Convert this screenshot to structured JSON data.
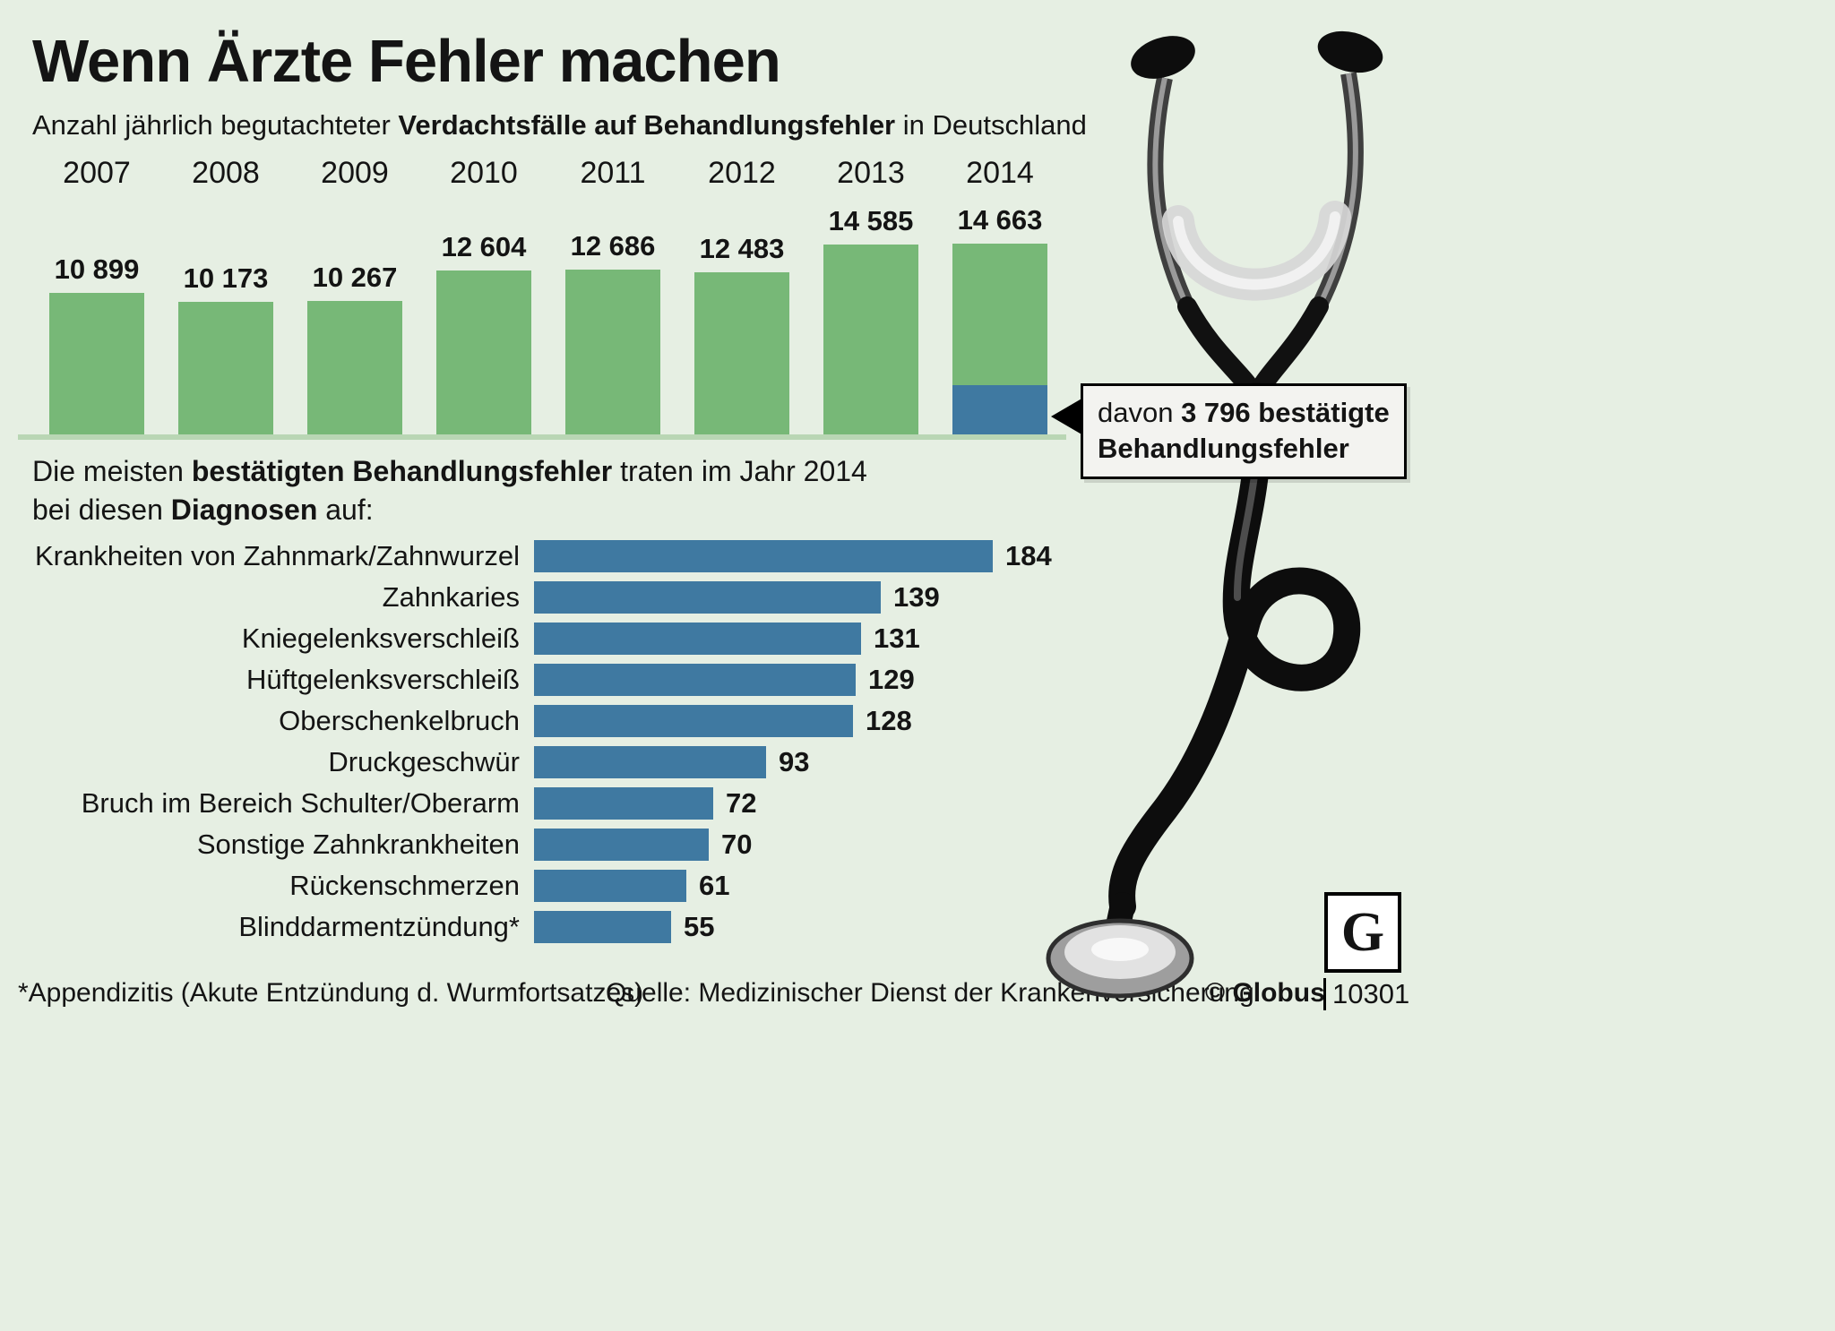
{
  "title": "Wenn Ärzte Fehler machen",
  "subtitle": {
    "t1": "Anzahl jährlich begutachteter ",
    "b1": "Verdachtsfälle auf Behandlungsfehler",
    "t2": " in Deutschland"
  },
  "callout": {
    "t1": "davon ",
    "b1": "3 796 bestätigte",
    "b2": "Behandlungsfehler"
  },
  "section2": {
    "t1": "Die meisten ",
    "b1": "bestätigten Behandlungsfehler",
    "t2": " traten im Jahr 2014",
    "t3": "bei diesen ",
    "b2": "Diagnosen",
    "t4": " auf:"
  },
  "footer": {
    "note": "*Appendizitis (Akute Entzündung d. Wurmfortsatzes)",
    "source": "Quelle: Medizinischer Dienst der Krankenversicherung",
    "credit": "© Globus",
    "logo_letter": "G",
    "logo_id": "10301"
  },
  "colors": {
    "bg": "#e6efe3",
    "green": "#77b877",
    "blue": "#3f79a1",
    "baseline": "#b9d6b4",
    "callout-bg": "#f3f3f0",
    "text": "#141414"
  },
  "chart_data": [
    {
      "type": "bar",
      "title": "Anzahl jährlich begutachteter Verdachtsfälle auf Behandlungsfehler in Deutschland",
      "categories": [
        "2007",
        "2008",
        "2009",
        "2010",
        "2011",
        "2012",
        "2013",
        "2014"
      ],
      "values": [
        10899,
        10173,
        10267,
        12604,
        12686,
        12483,
        14585,
        14663
      ],
      "value_labels": [
        "10 899",
        "10 173",
        "10 267",
        "12 604",
        "12 686",
        "12 483",
        "14 585",
        "14 663"
      ],
      "ylim": [
        0,
        14663
      ],
      "grid": false,
      "legend": "none",
      "highlight": {
        "category": "2014",
        "confirmed_value": 3796,
        "note": "davon 3 796 bestätigte Behandlungsfehler"
      }
    },
    {
      "type": "bar",
      "orientation": "horizontal",
      "title": "Die meisten bestätigten Behandlungsfehler traten im Jahr 2014 bei diesen Diagnosen auf:",
      "categories": [
        "Krankheiten von Zahnmark/Zahnwurzel",
        "Zahnkaries",
        "Kniegelenksverschleiß",
        "Hüftgelenksverschleiß",
        "Oberschenkelbruch",
        "Druckgeschwür",
        "Bruch im Bereich Schulter/Oberarm",
        "Sonstige Zahnkrankheiten",
        "Rückenschmerzen",
        "Blinddarmentzündung*"
      ],
      "values": [
        184,
        139,
        131,
        129,
        128,
        93,
        72,
        70,
        61,
        55
      ],
      "xlim": [
        0,
        184
      ],
      "grid": false,
      "legend": "none"
    }
  ]
}
